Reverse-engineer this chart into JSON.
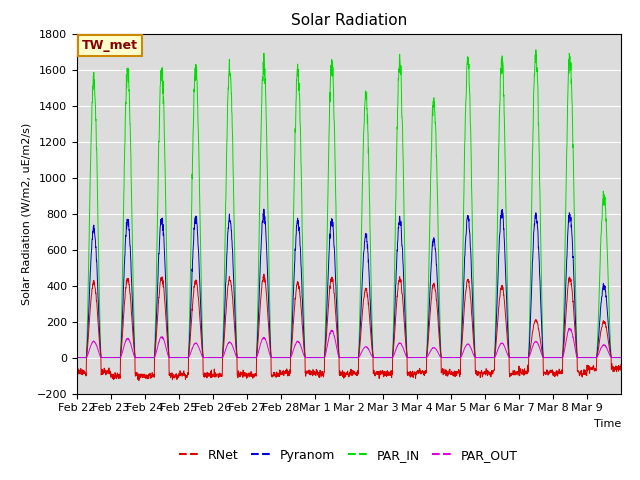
{
  "title": "Solar Radiation",
  "ylabel": "Solar Radiation (W/m2, uE/m2/s)",
  "xlabel": "Time",
  "ylim": [
    -200,
    1800
  ],
  "yticks": [
    -200,
    0,
    200,
    400,
    600,
    800,
    1000,
    1200,
    1400,
    1600,
    1800
  ],
  "colors": {
    "RNet": "#dd0000",
    "Pyranom": "#0000dd",
    "PAR_IN": "#00dd00",
    "PAR_OUT": "#dd00dd"
  },
  "background_color": "#dcdcdc",
  "legend_label": "TW_met",
  "legend_box_color": "#ffffcc",
  "legend_box_edge": "#cc8800",
  "n_days": 16,
  "x_tick_labels": [
    "Feb 22",
    "Feb 23",
    "Feb 24",
    "Feb 25",
    "Feb 26",
    "Feb 27",
    "Feb 28",
    "Mar 1",
    "Mar 2",
    "Mar 3",
    "Mar 4",
    "Mar 5",
    "Mar 6",
    "Mar 7",
    "Mar 8",
    "Mar 9"
  ],
  "par_peaks": [
    1550,
    1590,
    1600,
    1605,
    1600,
    1640,
    1600,
    1630,
    1460,
    1630,
    1430,
    1650,
    1650,
    1700,
    1660,
    900
  ],
  "pyra_peaks": [
    720,
    760,
    770,
    775,
    770,
    800,
    760,
    760,
    680,
    760,
    660,
    780,
    810,
    800,
    790,
    400
  ],
  "rnet_peaks": [
    420,
    435,
    445,
    425,
    435,
    450,
    415,
    440,
    380,
    435,
    410,
    430,
    395,
    210,
    440,
    200
  ],
  "parout_peaks": [
    90,
    105,
    115,
    80,
    85,
    110,
    90,
    150,
    60,
    80,
    55,
    75,
    80,
    90,
    160,
    70
  ],
  "rnet_night": [
    -80,
    -100,
    -100,
    -95,
    -95,
    -95,
    -85,
    -90,
    -85,
    -90,
    -80,
    -85,
    -85,
    -80,
    -85,
    -60
  ],
  "title_fontsize": 11,
  "axis_fontsize": 8,
  "tick_fontsize": 8
}
